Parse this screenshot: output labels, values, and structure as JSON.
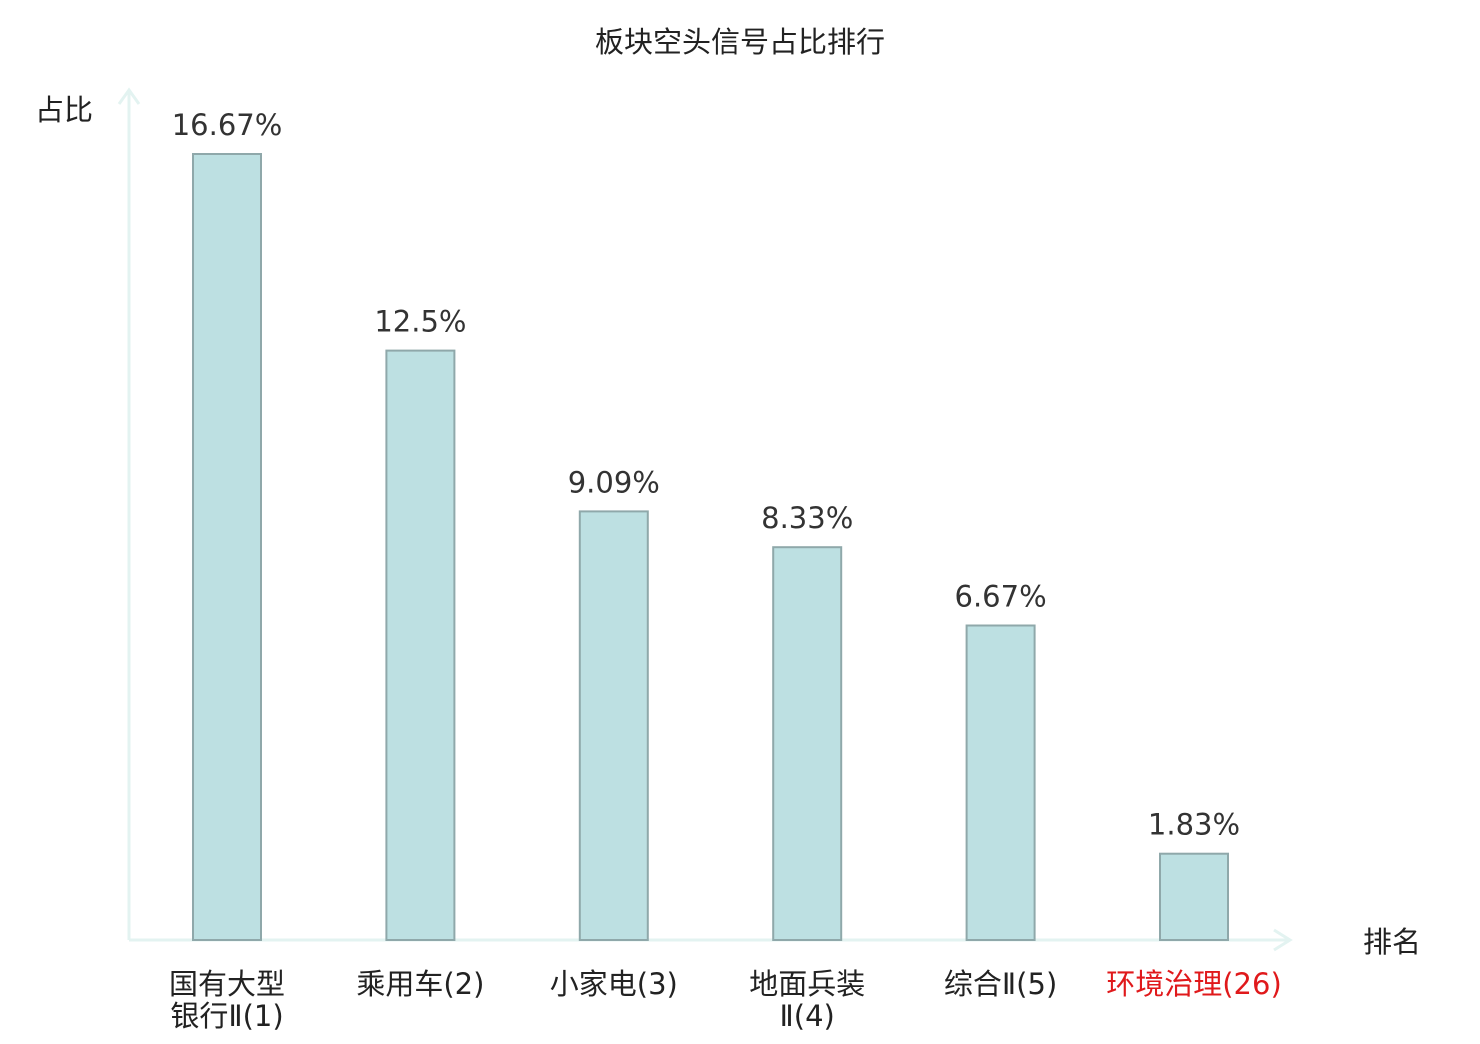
{
  "chart_data": {
    "type": "bar",
    "title": "板块空头信号占比排行",
    "ylabel": "占比",
    "xlabel": "排名",
    "ylim": [
      0,
      16.67
    ],
    "grid": false,
    "categories": [
      [
        "国有大型",
        "银行Ⅱ(1)"
      ],
      [
        "乘用车(2)"
      ],
      [
        "小家电(3)"
      ],
      [
        "地面兵装",
        "Ⅱ(4)"
      ],
      [
        "综合Ⅱ(5)"
      ],
      [
        "环境治理(26)"
      ]
    ],
    "values": [
      16.67,
      12.5,
      9.09,
      8.33,
      6.67,
      1.83
    ],
    "value_labels": [
      "16.67%",
      "12.5%",
      "9.09%",
      "8.33%",
      "6.67%",
      "1.83%"
    ],
    "highlight_index": 5
  },
  "colors": {
    "bar_fill": "#bde0e2",
    "bar_stroke": "#8fa8aa",
    "axis": "#e3f3f1",
    "text": "#222222",
    "label_text": "#333333",
    "highlight": "#e0191b"
  }
}
